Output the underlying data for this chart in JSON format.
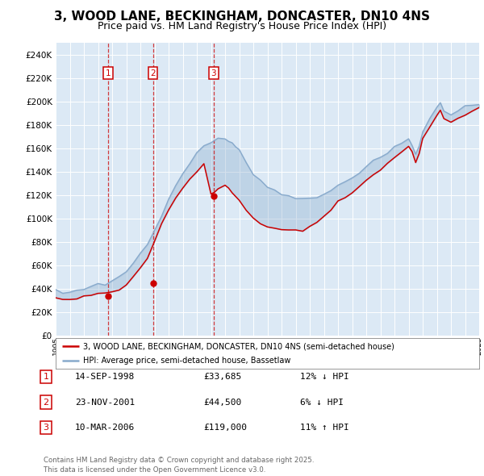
{
  "title": "3, WOOD LANE, BECKINGHAM, DONCASTER, DN10 4NS",
  "subtitle": "Price paid vs. HM Land Registry's House Price Index (HPI)",
  "title_fontsize": 11,
  "subtitle_fontsize": 9,
  "plot_bg_color": "#dce9f5",
  "fig_bg_color": "#ffffff",
  "ylim": [
    0,
    250000
  ],
  "xlim": [
    1995,
    2025
  ],
  "legend_line1": "3, WOOD LANE, BECKINGHAM, DONCASTER, DN10 4NS (semi-detached house)",
  "legend_line2": "HPI: Average price, semi-detached house, Bassetlaw",
  "sale_color": "#cc0000",
  "hpi_color": "#88aacc",
  "transactions": [
    {
      "num": 1,
      "date": "14-SEP-1998",
      "price": 33685,
      "pct": "12%",
      "dir": "↓",
      "year_x": 1998.71
    },
    {
      "num": 2,
      "date": "23-NOV-2001",
      "price": 44500,
      "pct": "6%",
      "dir": "↓",
      "year_x": 2001.89
    },
    {
      "num": 3,
      "date": "10-MAR-2006",
      "price": 119000,
      "pct": "11%",
      "dir": "↑",
      "year_x": 2006.19
    }
  ],
  "footer": "Contains HM Land Registry data © Crown copyright and database right 2025.\nThis data is licensed under the Open Government Licence v3.0.",
  "hpi_years": [
    1995,
    1995.5,
    1996,
    1996.5,
    1997,
    1997.5,
    1998,
    1998.5,
    1999,
    1999.5,
    2000,
    2000.5,
    2001,
    2001.5,
    2002,
    2002.5,
    2003,
    2003.5,
    2004,
    2004.5,
    2005,
    2005.5,
    2006,
    2006.5,
    2007,
    2007.25,
    2007.5,
    2007.75,
    2008,
    2008.5,
    2009,
    2009.5,
    2010,
    2010.5,
    2011,
    2011.5,
    2012,
    2012.5,
    2013,
    2013.5,
    2014,
    2014.5,
    2015,
    2015.5,
    2016,
    2016.5,
    2017,
    2017.5,
    2018,
    2018.5,
    2019,
    2019.5,
    2020,
    2020.25,
    2020.5,
    2020.75,
    2021,
    2021.5,
    2022,
    2022.25,
    2022.5,
    2023,
    2023.5,
    2024,
    2024.5,
    2025
  ],
  "hpi_vals": [
    38000,
    36500,
    37000,
    38500,
    40000,
    42000,
    44500,
    44500,
    46000,
    50000,
    55000,
    62000,
    70000,
    78000,
    90000,
    103000,
    116000,
    128000,
    138000,
    148000,
    155000,
    162000,
    165000,
    167000,
    168000,
    167000,
    165000,
    163000,
    158000,
    148000,
    138000,
    132000,
    128000,
    124000,
    122000,
    120000,
    118000,
    116000,
    116000,
    118000,
    120000,
    124000,
    128000,
    132000,
    136000,
    140000,
    144000,
    148000,
    152000,
    156000,
    160000,
    164000,
    168000,
    162000,
    155000,
    162000,
    175000,
    185000,
    195000,
    198000,
    192000,
    190000,
    192000,
    195000,
    197000,
    198000
  ],
  "sale_years": [
    1995,
    1995.5,
    1996,
    1996.5,
    1997,
    1997.5,
    1998,
    1998.5,
    1999,
    1999.5,
    2000,
    2000.5,
    2001,
    2001.5,
    2002,
    2002.5,
    2003,
    2003.5,
    2004,
    2004.5,
    2005,
    2005.5,
    2006,
    2006.25,
    2006.5,
    2007,
    2007.25,
    2007.5,
    2008,
    2008.5,
    2009,
    2009.5,
    2010,
    2010.5,
    2011,
    2011.5,
    2012,
    2012.5,
    2013,
    2013.5,
    2014,
    2014.5,
    2015,
    2015.5,
    2016,
    2016.5,
    2017,
    2017.5,
    2018,
    2018.5,
    2019,
    2019.5,
    2020,
    2020.25,
    2020.5,
    2020.75,
    2021,
    2021.5,
    2022,
    2022.25,
    2022.5,
    2023,
    2023.5,
    2024,
    2024.5,
    2025
  ],
  "sale_vals": [
    33000,
    31500,
    31000,
    32000,
    33000,
    34500,
    36000,
    35500,
    36500,
    39000,
    43000,
    50000,
    58000,
    67000,
    80000,
    95000,
    107000,
    118000,
    126000,
    134000,
    140000,
    146000,
    120000,
    122000,
    125000,
    128000,
    126000,
    122000,
    116000,
    107000,
    99000,
    95000,
    93000,
    92000,
    91000,
    90000,
    90000,
    90000,
    93000,
    97000,
    101000,
    107000,
    114000,
    118000,
    122000,
    127000,
    132000,
    137000,
    142000,
    147000,
    152000,
    157000,
    162000,
    156000,
    148000,
    156000,
    168000,
    178000,
    188000,
    192000,
    185000,
    182000,
    185000,
    188000,
    192000,
    195000
  ]
}
